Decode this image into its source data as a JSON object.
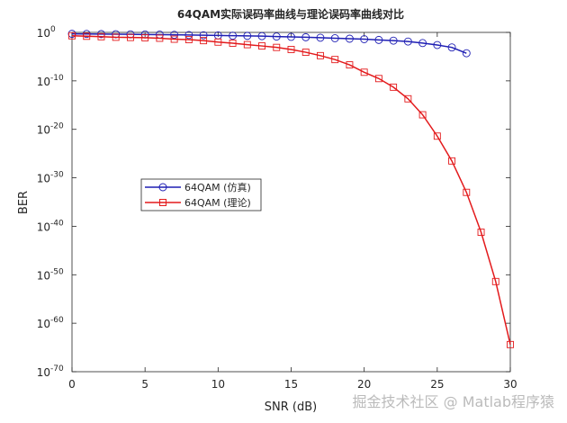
{
  "chart_data": {
    "type": "line",
    "title": "64QAM实际误码率曲线与理论误码率曲线对比",
    "x_label": "SNR (dB)",
    "y_label": "BER",
    "log_y": true,
    "xlim": [
      0,
      30
    ],
    "xticks": [
      0,
      5,
      10,
      15,
      20,
      25,
      30
    ],
    "ylim": [
      1e-70,
      1
    ],
    "yticks": [
      {
        "value": 1,
        "label": "10",
        "exponent": "0"
      },
      {
        "value": 1e-10,
        "label": "10",
        "exponent": "-10"
      },
      {
        "value": 1e-20,
        "label": "10",
        "exponent": "-20"
      },
      {
        "value": 1e-30,
        "label": "10",
        "exponent": "-30"
      },
      {
        "value": 1e-40,
        "label": "10",
        "exponent": "-40"
      },
      {
        "value": 1e-50,
        "label": "10",
        "exponent": "-50"
      },
      {
        "value": 1e-60,
        "label": "10",
        "exponent": "-60"
      },
      {
        "value": 1e-70,
        "label": "10",
        "exponent": "-70"
      }
    ],
    "legend": "upper left",
    "series": [
      {
        "name": "64QAM (仿真)",
        "color": "#1f1fb4",
        "marker": "circle",
        "x": [
          0,
          1,
          2,
          3,
          4,
          5,
          6,
          7,
          8,
          9,
          10,
          11,
          12,
          13,
          14,
          15,
          16,
          17,
          18,
          19,
          20,
          21,
          22,
          23,
          24,
          25,
          26,
          27
        ],
        "values": [
          0.5,
          0.48,
          0.45,
          0.42,
          0.4,
          0.37,
          0.35,
          0.32,
          0.29,
          0.26,
          0.24,
          0.21,
          0.19,
          0.17,
          0.14,
          0.12,
          0.1,
          0.08,
          0.063,
          0.05,
          0.04,
          0.028,
          0.02,
          0.013,
          0.0063,
          0.0025,
          0.0008,
          5e-05
        ]
      },
      {
        "name": "64QAM (理论)",
        "color": "#e31a1c",
        "marker": "square",
        "x": [
          0,
          1,
          2,
          3,
          4,
          5,
          6,
          7,
          8,
          9,
          10,
          11,
          12,
          13,
          14,
          15,
          16,
          17,
          18,
          19,
          20,
          21,
          22,
          23,
          24,
          25,
          26,
          27,
          28,
          29,
          30
        ],
        "values": [
          0.2,
          0.16,
          0.13,
          0.1,
          0.09,
          0.08,
          0.063,
          0.04,
          0.032,
          0.02,
          0.01,
          0.006,
          0.003,
          0.0016,
          0.0008,
          0.0003,
          8e-05,
          1.6e-05,
          2.5e-06,
          2e-07,
          6e-09,
          3e-10,
          5e-12,
          2e-14,
          1e-17,
          4e-22,
          3e-27,
          1e-33,
          6e-42,
          4e-52,
          4e-65
        ]
      }
    ],
    "watermark": "掘金技术社区 @ Matlab程序猿"
  }
}
